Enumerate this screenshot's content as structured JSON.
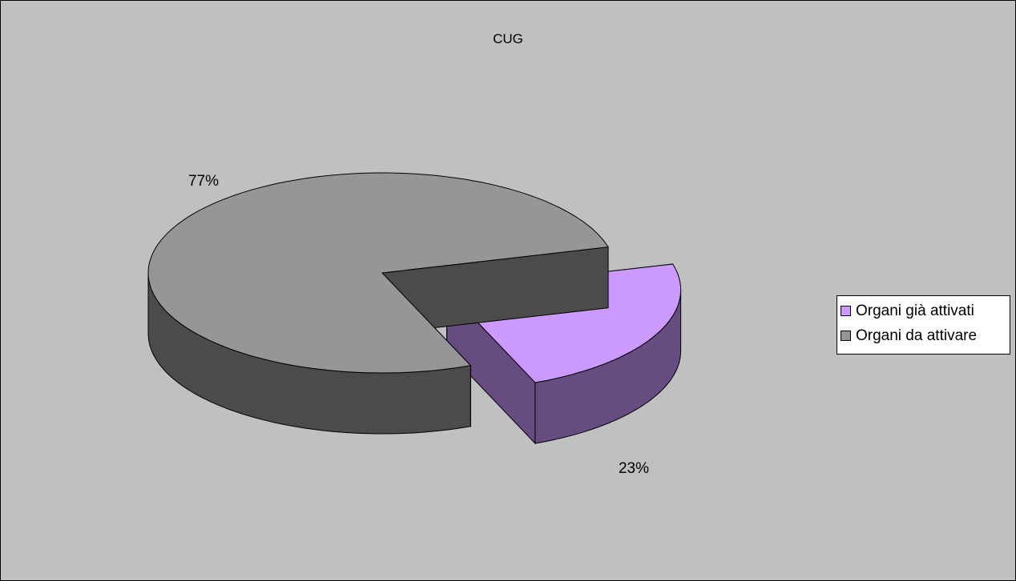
{
  "chart_data": {
    "type": "pie",
    "title": "CUG",
    "categories": [
      "Organi già attivati",
      "Organi da attivare"
    ],
    "values": [
      23,
      77
    ],
    "labels": [
      "23%",
      "77%"
    ],
    "colors": {
      "Organi già attivati": {
        "top": "#cc99ff",
        "side": "#664c80"
      },
      "Organi da attivare": {
        "top": "#969696",
        "side": "#4b4b4b"
      }
    },
    "exploded": "Organi già attivati",
    "legend_position": "right"
  }
}
